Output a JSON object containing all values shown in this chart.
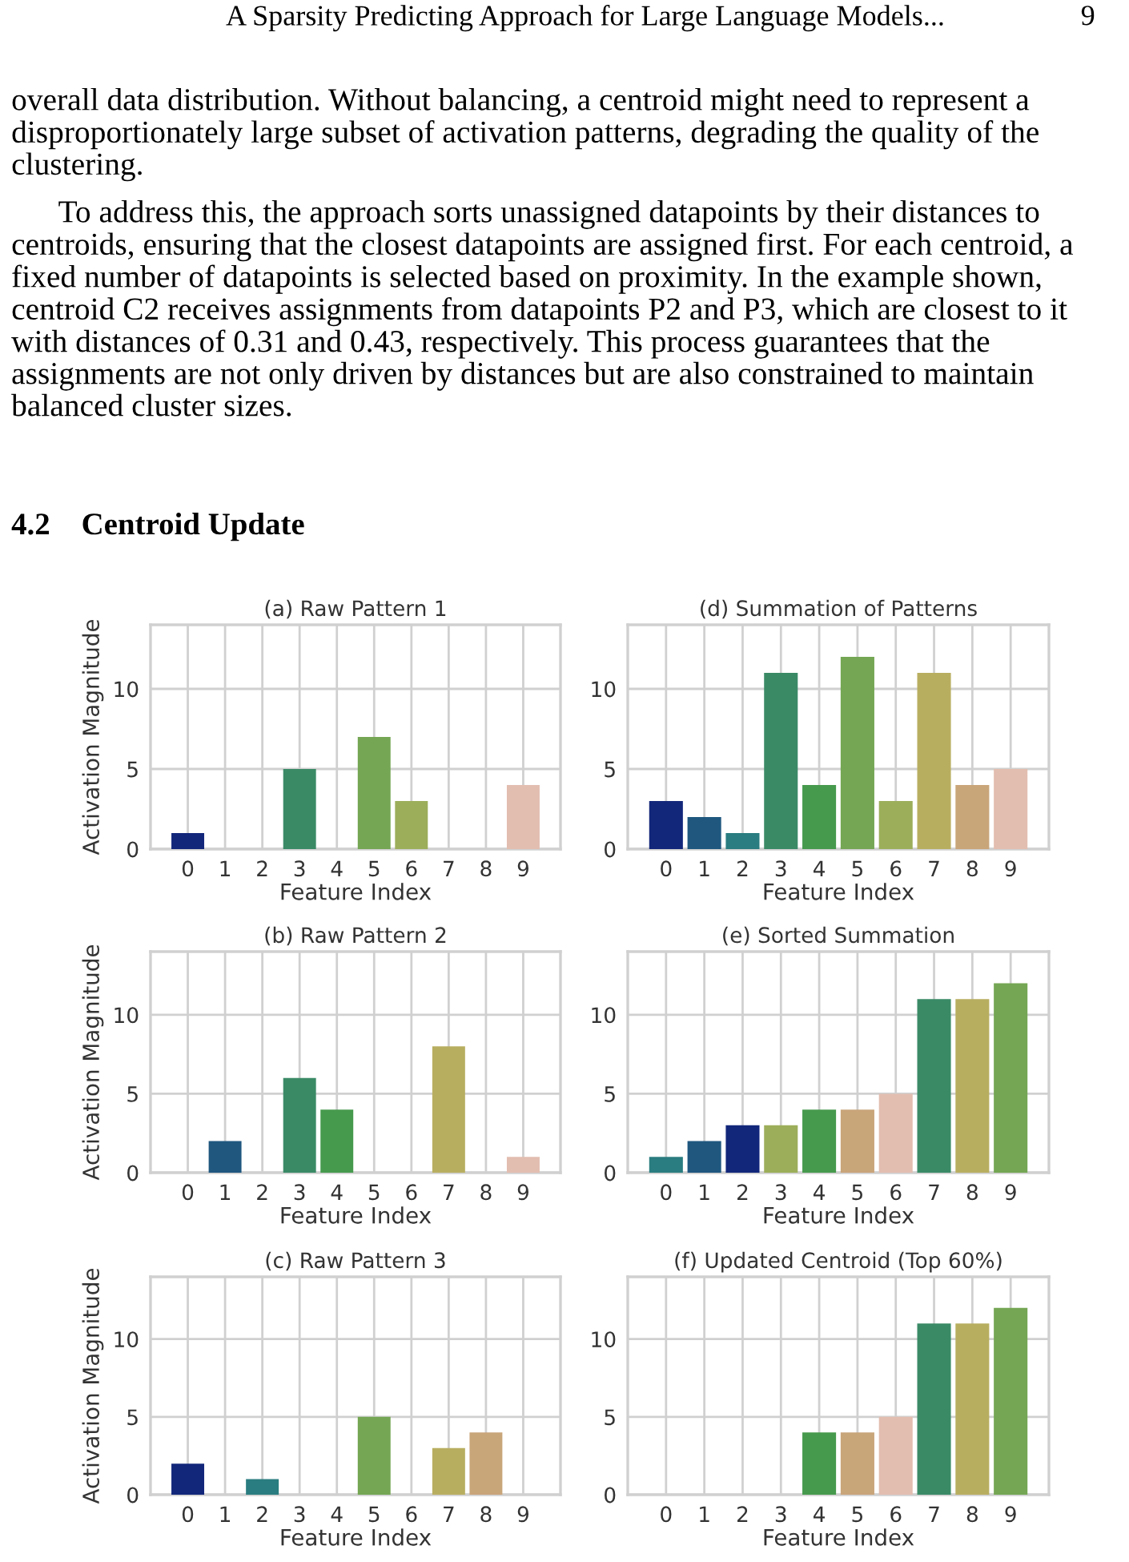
{
  "chart_data": [
    {
      "type": "bar",
      "title": "(a) Raw Pattern 1",
      "xlabel": "Feature Index",
      "ylabel": "Activation Magnitude",
      "categories": [
        "0",
        "1",
        "2",
        "3",
        "4",
        "5",
        "6",
        "7",
        "8",
        "9"
      ],
      "values": [
        1,
        0,
        0,
        5,
        0,
        7,
        3,
        0,
        0,
        4
      ],
      "colors": [
        "#12277a",
        "#1f577f",
        "#2a7d80",
        "#3a8a66",
        "#469a4d",
        "#74a653",
        "#9cae5a",
        "#b8ae60",
        "#c9a57a",
        "#e2beb0"
      ],
      "ylim": [
        0,
        14
      ],
      "yticks": [
        0,
        5,
        10
      ],
      "grid": true,
      "annotations": [
        "A Sparsity Predicting Approach for Large Language Models...",
        "9",
        "overall data distribution. Without balancing, a centroid might need to represent a disproportionately large subset of activation patterns, degrading the quality of the clustering.",
        "To address this, the approach sorts unassigned datapoints by their distances to centroids, ensuring that the closest datapoints are assigned first. For each centroid, a fixed number of datapoints is selected based on proximity. In the example shown, centroid C2 receives assignments from datapoints P2 and P3, which are closest to it with distances of 0.31 and 0.43, respectively. This process guarantees that the assignments are not only driven by distances but are also constrained to maintain balanced cluster sizes.",
        "4.2    Centroid Update"
      ]
    },
    {
      "type": "bar",
      "title": "(b) Raw Pattern 2",
      "xlabel": "Feature Index",
      "ylabel": "Activation Magnitude",
      "categories": [
        "0",
        "1",
        "2",
        "3",
        "4",
        "5",
        "6",
        "7",
        "8",
        "9"
      ],
      "values": [
        0,
        2,
        0,
        6,
        4,
        0,
        0,
        8,
        0,
        1
      ],
      "colors": [
        "#12277a",
        "#1f577f",
        "#2a7d80",
        "#3a8a66",
        "#469a4d",
        "#74a653",
        "#9cae5a",
        "#b8ae60",
        "#c9a57a",
        "#e2beb0"
      ],
      "ylim": [
        0,
        14
      ],
      "yticks": [
        0,
        5,
        10
      ],
      "grid": true
    },
    {
      "type": "bar",
      "title": "(c) Raw Pattern 3",
      "xlabel": "Feature Index",
      "ylabel": "Activation Magnitude",
      "categories": [
        "0",
        "1",
        "2",
        "3",
        "4",
        "5",
        "6",
        "7",
        "8",
        "9"
      ],
      "values": [
        2,
        0,
        1,
        0,
        0,
        5,
        0,
        3,
        4,
        0
      ],
      "colors": [
        "#12277a",
        "#1f577f",
        "#2a7d80",
        "#3a8a66",
        "#469a4d",
        "#74a653",
        "#9cae5a",
        "#b8ae60",
        "#c9a57a",
        "#e2beb0"
      ],
      "ylim": [
        0,
        14
      ],
      "yticks": [
        0,
        5,
        10
      ],
      "grid": true
    },
    {
      "type": "bar",
      "title": "(d) Summation of Patterns",
      "xlabel": "Feature Index",
      "categories": [
        "0",
        "1",
        "2",
        "3",
        "4",
        "5",
        "6",
        "7",
        "8",
        "9"
      ],
      "values": [
        3,
        2,
        1,
        11,
        4,
        12,
        3,
        11,
        4,
        5
      ],
      "colors": [
        "#12277a",
        "#1f577f",
        "#2a7d80",
        "#3a8a66",
        "#469a4d",
        "#74a653",
        "#9cae5a",
        "#b8ae60",
        "#c9a57a",
        "#e2beb0"
      ],
      "ylim": [
        0,
        14
      ],
      "yticks": [
        0,
        5,
        10
      ],
      "grid": true
    },
    {
      "type": "bar",
      "title": "(e) Sorted Summation",
      "xlabel": "Feature Index",
      "categories": [
        "0",
        "1",
        "2",
        "3",
        "4",
        "5",
        "6",
        "7",
        "8",
        "9"
      ],
      "values": [
        1,
        2,
        3,
        3,
        4,
        4,
        5,
        11,
        11,
        12
      ],
      "colors": [
        "#2a7d80",
        "#1f577f",
        "#12277a",
        "#9cae5a",
        "#469a4d",
        "#c9a57a",
        "#e2beb0",
        "#3a8a66",
        "#b8ae60",
        "#74a653"
      ],
      "ylim": [
        0,
        14
      ],
      "yticks": [
        0,
        5,
        10
      ],
      "grid": true
    },
    {
      "type": "bar",
      "title": "(f) Updated Centroid (Top 60%)",
      "xlabel": "Feature Index",
      "categories": [
        "0",
        "1",
        "2",
        "3",
        "4",
        "5",
        "6",
        "7",
        "8",
        "9"
      ],
      "values": [
        0,
        0,
        0,
        0,
        4,
        4,
        5,
        11,
        11,
        12
      ],
      "colors": [
        "#2a7d80",
        "#1f577f",
        "#12277a",
        "#9cae5a",
        "#469a4d",
        "#c9a57a",
        "#e2beb0",
        "#3a8a66",
        "#b8ae60",
        "#74a653"
      ],
      "ylim": [
        0,
        14
      ],
      "yticks": [
        0,
        5,
        10
      ],
      "grid": true
    }
  ]
}
